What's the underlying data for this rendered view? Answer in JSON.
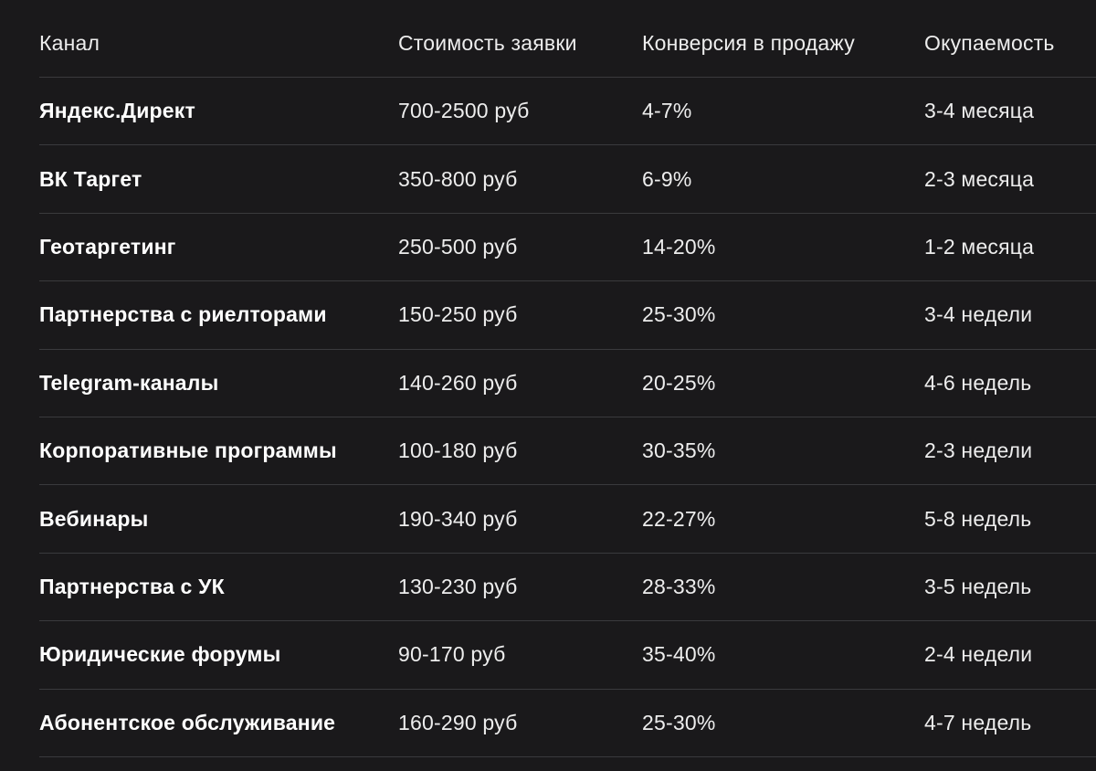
{
  "table": {
    "headers": [
      "Канал",
      "Стоимость заявки",
      "Конверсия в продажу",
      "Окупаемость"
    ],
    "rows": [
      [
        "Яндекс.Директ",
        "700-2500 руб",
        "4-7%",
        "3-4 месяца"
      ],
      [
        "ВК Таргет",
        "350-800 руб",
        "6-9%",
        "2-3 месяца"
      ],
      [
        "Геотаргетинг",
        "250-500 руб",
        "14-20%",
        "1-2 месяца"
      ],
      [
        "Партнерства с риелторами",
        "150-250 руб",
        "25-30%",
        "3-4 недели"
      ],
      [
        "Telegram-каналы",
        "140-260 руб",
        "20-25%",
        "4-6 недель"
      ],
      [
        "Корпоративные программы",
        "100-180 руб",
        "30-35%",
        "2-3 недели"
      ],
      [
        "Вебинары",
        "190-340 руб",
        "22-27%",
        "5-8 недель"
      ],
      [
        "Партнерства с УК",
        "130-230 руб",
        "28-33%",
        "3-5 недель"
      ],
      [
        "Юридические форумы",
        "90-170 руб",
        "35-40%",
        "2-4 недели"
      ],
      [
        "Абонентское обслуживание",
        "160-290 руб",
        "25-30%",
        "4-7 недель"
      ]
    ]
  }
}
